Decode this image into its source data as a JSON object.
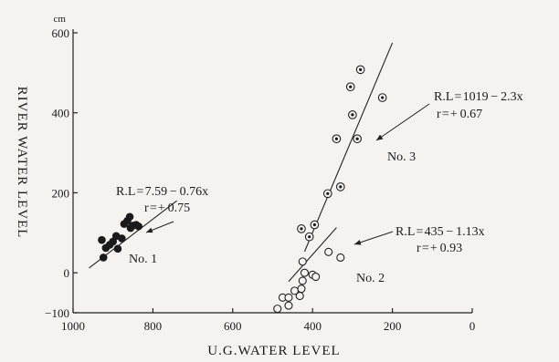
{
  "chart_data": {
    "type": "scatter",
    "xlabel": "U.G.WATER  LEVEL",
    "ylabel": "RIVER  WATER  LEVEL",
    "y_unit": "cm",
    "xlim": [
      1000,
      0
    ],
    "ylim": [
      -100,
      600
    ],
    "x_ticks": [
      "1000",
      "800",
      "600",
      "400",
      "200",
      "0"
    ],
    "y_ticks": [
      "600",
      "400",
      "200",
      "0",
      "−100"
    ],
    "grid": false,
    "series": [
      {
        "name": "No. 1",
        "marker": "filled",
        "points": [
          [
            928,
            82
          ],
          [
            918,
            62
          ],
          [
            924,
            38
          ],
          [
            908,
            70
          ],
          [
            900,
            78
          ],
          [
            892,
            92
          ],
          [
            888,
            60
          ],
          [
            878,
            86
          ],
          [
            872,
            122
          ],
          [
            864,
            130
          ],
          [
            858,
            140
          ],
          [
            856,
            112
          ],
          [
            850,
            118
          ],
          [
            842,
            120
          ],
          [
            836,
            116
          ]
        ],
        "fit": {
          "equation": "R.L = 7.59 − 0.76x",
          "r": "r = + 0.75",
          "line": [
            [
              960,
              12
            ],
            [
              740,
              180
            ]
          ]
        }
      },
      {
        "name": "No. 2",
        "marker": "open",
        "points": [
          [
            488,
            -90
          ],
          [
            475,
            -62
          ],
          [
            460,
            -82
          ],
          [
            460,
            -62
          ],
          [
            445,
            -45
          ],
          [
            432,
            -58
          ],
          [
            428,
            -40
          ],
          [
            425,
            -20
          ],
          [
            425,
            28
          ],
          [
            420,
            0
          ],
          [
            400,
            -5
          ],
          [
            392,
            -10
          ],
          [
            360,
            52
          ],
          [
            330,
            38
          ]
        ],
        "fit": {
          "equation": "R.L = 435 − 1.13x",
          "r": "r = + 0.93",
          "line": [
            [
              460,
              -22
            ],
            [
              340,
              113
            ]
          ]
        }
      },
      {
        "name": "No. 3",
        "marker": "dotted",
        "points": [
          [
            428,
            110
          ],
          [
            408,
            90
          ],
          [
            395,
            120
          ],
          [
            362,
            198
          ],
          [
            340,
            335
          ],
          [
            330,
            215
          ],
          [
            305,
            465
          ],
          [
            300,
            395
          ],
          [
            288,
            335
          ],
          [
            280,
            508
          ],
          [
            225,
            438
          ]
        ],
        "fit": {
          "equation": "R.L = 1019 − 2.3x",
          "r": "r = + 0.67",
          "line": [
            [
              420,
              53
            ],
            [
              200,
              575
            ]
          ]
        }
      }
    ]
  }
}
